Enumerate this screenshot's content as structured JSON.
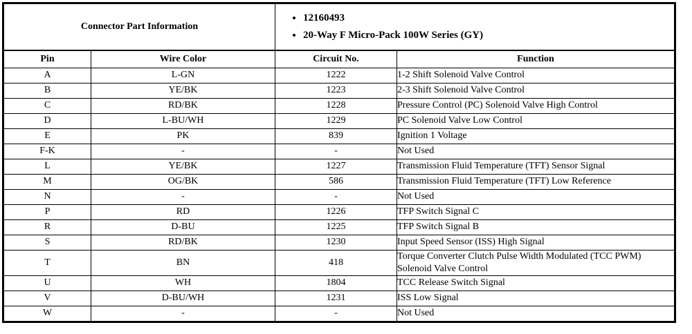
{
  "header": {
    "part_info_label": "Connector Part Information",
    "bullets": [
      "12160493",
      "20-Way F Micro-Pack 100W Series (GY)"
    ]
  },
  "table": {
    "columns": [
      "Pin",
      "Wire Color",
      "Circuit No.",
      "Function"
    ],
    "rows": [
      {
        "pin": "A",
        "wire_color": "L-GN",
        "circuit": "1222",
        "function": "1-2 Shift Solenoid Valve Control"
      },
      {
        "pin": "B",
        "wire_color": "YE/BK",
        "circuit": "1223",
        "function": "2-3 Shift Solenoid Valve Control"
      },
      {
        "pin": "C",
        "wire_color": "RD/BK",
        "circuit": "1228",
        "function": "Pressure Control (PC) Solenoid Valve High Control"
      },
      {
        "pin": "D",
        "wire_color": "L-BU/WH",
        "circuit": "1229",
        "function": "PC Solenoid Valve Low Control"
      },
      {
        "pin": "E",
        "wire_color": "PK",
        "circuit": "839",
        "function": "Ignition 1 Voltage"
      },
      {
        "pin": "F-K",
        "wire_color": "-",
        "circuit": "-",
        "function": "Not Used"
      },
      {
        "pin": "L",
        "wire_color": "YE/BK",
        "circuit": "1227",
        "function": "Transmission Fluid Temperature (TFT) Sensor Signal"
      },
      {
        "pin": "M",
        "wire_color": "OG/BK",
        "circuit": "586",
        "function": "Transmission Fluid Temperature (TFT) Low Reference"
      },
      {
        "pin": "N",
        "wire_color": "-",
        "circuit": "-",
        "function": "Not Used"
      },
      {
        "pin": "P",
        "wire_color": "RD",
        "circuit": "1226",
        "function": "TFP Switch Signal C"
      },
      {
        "pin": "R",
        "wire_color": "D-BU",
        "circuit": "1225",
        "function": "TFP Switch Signal B"
      },
      {
        "pin": "S",
        "wire_color": "RD/BK",
        "circuit": "1230",
        "function": "Input Speed Sensor (ISS) High Signal"
      },
      {
        "pin": "T",
        "wire_color": "BN",
        "circuit": "418",
        "function": "Torque Converter Clutch Pulse Width Modulated (TCC PWM) Solenoid Valve Control"
      },
      {
        "pin": "U",
        "wire_color": "WH",
        "circuit": "1804",
        "function": "TCC Release Switch Signal"
      },
      {
        "pin": "V",
        "wire_color": "D-BU/WH",
        "circuit": "1231",
        "function": "ISS Low Signal"
      },
      {
        "pin": "W",
        "wire_color": "-",
        "circuit": "-",
        "function": "Not Used"
      }
    ]
  },
  "colors": {
    "background": "#ffffff",
    "border": "#000000",
    "text": "#000000"
  }
}
